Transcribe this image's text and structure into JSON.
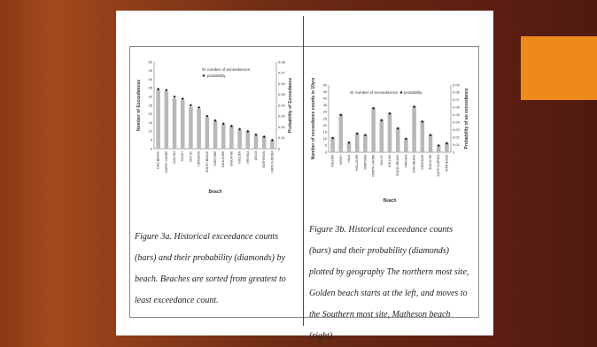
{
  "colors": {
    "bar": "#b8b8b8",
    "marker": "#222222",
    "accent": "#ee8a1a"
  },
  "captions": {
    "left": "Figure 3a. Historical exceedance counts (bars) and their probability (diamonds) by beach. Beaches are sorted from greatest to least exceedance count.",
    "right": "Figure 3b. Historical exceedance counts (bars) and their probability (diamonds) plotted by geography The northern most site, Golden beach starts at the left, and moves to the Southern most site, Matheson beach (right)."
  },
  "chart_data": [
    {
      "type": "bar",
      "xlabel": "Beach",
      "ylabel": "Number of Exceedances",
      "y2label": "Probability of Exceedance",
      "ylim": [
        0,
        50
      ],
      "y2lim": [
        0,
        0.08
      ],
      "yticks": [
        "0",
        "5",
        "10",
        "15",
        "20",
        "25",
        "30",
        "35",
        "40",
        "45",
        "50"
      ],
      "y2ticks": [
        "0",
        "0.01",
        "0.02",
        "0.03",
        "0.04",
        "0.05",
        "0.06",
        "0.07",
        "0.08"
      ],
      "legend": "top-right",
      "categories": [
        "DOG BEACH",
        "NORTH SHORE",
        "COLLINS",
        "SUNNY",
        "53rd ST.",
        "CRANDON",
        "SOUTH BEACH",
        "SURFSIDE",
        "HAULOVER",
        "BISCAYNE",
        "GOLDEN",
        "VIRGINIA",
        "DELTA",
        "MATHESON",
        "CAPE FLORIDA"
      ],
      "series": [
        {
          "name": "number of exceedances",
          "values": [
            34,
            33,
            29,
            28,
            24,
            23,
            18,
            16,
            14,
            13,
            11,
            10,
            8,
            7,
            5
          ]
        },
        {
          "name": "probability",
          "values": [
            0.055,
            0.054,
            0.048,
            0.046,
            0.04,
            0.038,
            0.03,
            0.026,
            0.023,
            0.021,
            0.018,
            0.016,
            0.013,
            0.011,
            0.008
          ]
        }
      ]
    },
    {
      "type": "bar",
      "xlabel": "Beach",
      "ylabel": "Number of exceedance counts in 10yrs",
      "y2label": "Probability of an exceedance",
      "ylim": [
        0,
        50
      ],
      "y2lim": [
        0,
        0.09
      ],
      "yticks": [
        "0",
        "5",
        "10",
        "15",
        "20",
        "25",
        "30",
        "35",
        "40",
        "45",
        "50"
      ],
      "y2ticks": [
        "0",
        "0.01",
        "0.02",
        "0.03",
        "0.04",
        "0.05",
        "0.06",
        "0.07",
        "0.08",
        "0.09"
      ],
      "legend": "top",
      "categories": [
        "GOLDEN",
        "SUNNY",
        "HAUL",
        "HOLLOVER",
        "SURFSIDE",
        "NORTH SHORE",
        "53rd ST.",
        "COLLINS",
        "SOUTH BEACH",
        "VIRGINIA",
        "DOG BEACH",
        "CRANDON",
        "BISCAYNE",
        "CAPE FLORIDA",
        "MATHESON"
      ],
      "series": [
        {
          "name": "number of exceedances",
          "values": [
            11,
            28,
            7,
            14,
            13,
            33,
            24,
            29,
            18,
            10,
            34,
            23,
            13,
            5,
            7
          ]
        },
        {
          "name": "probability",
          "values": [
            0.019,
            0.05,
            0.013,
            0.025,
            0.023,
            0.059,
            0.043,
            0.052,
            0.032,
            0.018,
            0.061,
            0.041,
            0.023,
            0.009,
            0.012
          ]
        }
      ]
    }
  ]
}
